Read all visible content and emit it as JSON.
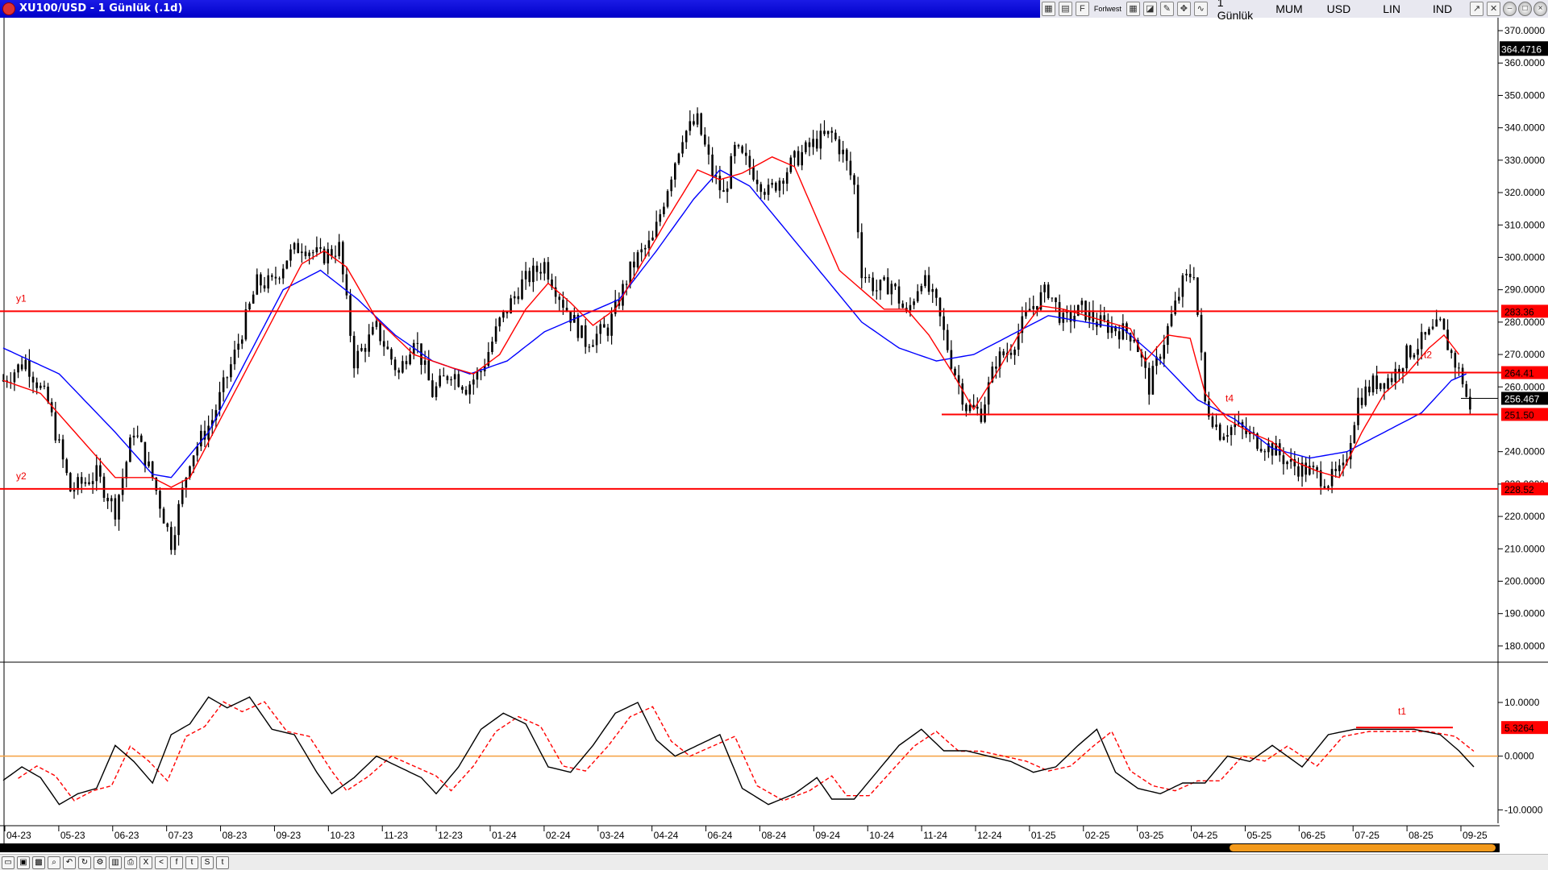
{
  "window": {
    "title": "XU100/USD - 1 Günlük (.1d)"
  },
  "toolbar": {
    "timeframe": "1 Günlük",
    "chart_style": "MUM",
    "currency": "USD",
    "scale": "LIN",
    "indicator": "IND",
    "foreks_label": "Forlwest",
    "icons": [
      "chart-icon",
      "template-icon",
      "foreks-icon",
      "grid-icon",
      "draw-icon",
      "pen-icon",
      "crosshair-icon",
      "wave-icon"
    ]
  },
  "bottom_icons": [
    "folder-icon",
    "save-icon",
    "image-icon",
    "zoom-icon",
    "undo-icon",
    "refresh-icon",
    "settings-icon",
    "db-icon",
    "print-icon",
    "excel-icon",
    "share-icon",
    "facebook-icon",
    "twitter-icon",
    "skype-icon",
    "tumblr-icon"
  ],
  "colors": {
    "ma_fast": "#ff0000",
    "ma_slow": "#0000ff",
    "hline": "#ff0000",
    "zero_line": "#f5a040",
    "osc_main": "#000000",
    "osc_signal": "#ff0000"
  },
  "chart_data": {
    "type": "candlestick",
    "symbol": "XU100/USD",
    "x_labels": [
      "04-23",
      "05-23",
      "06-23",
      "07-23",
      "08-23",
      "09-23",
      "10-23",
      "11-23",
      "12-23",
      "01-24",
      "02-24",
      "03-24",
      "04-24",
      "06-24",
      "08-24",
      "09-24",
      "10-24",
      "11-24",
      "12-24",
      "01-25",
      "02-25",
      "03-25",
      "04-25",
      "05-25",
      "06-25",
      "07-25",
      "08-25",
      "09-25"
    ],
    "price_axis": {
      "ylim": [
        175,
        372
      ],
      "ticks": [
        "370.0000",
        "360.0000",
        "350.0000",
        "340.0000",
        "330.0000",
        "320.0000",
        "310.0000",
        "300.0000",
        "290.0000",
        "280.0000",
        "270.0000",
        "260.0000",
        "240.0000",
        "230.0000",
        "220.0000",
        "210.0000",
        "200.0000",
        "190.0000",
        "180.0000"
      ],
      "tick_values": [
        370,
        360,
        350,
        340,
        330,
        320,
        310,
        300,
        290,
        280,
        270,
        260,
        240,
        230,
        220,
        210,
        200,
        190,
        180
      ]
    },
    "price_path": [
      [
        0,
        262
      ],
      [
        6,
        268
      ],
      [
        12,
        255
      ],
      [
        18,
        228
      ],
      [
        25,
        233
      ],
      [
        30,
        222
      ],
      [
        35,
        247
      ],
      [
        40,
        232
      ],
      [
        45,
        212
      ],
      [
        50,
        238
      ],
      [
        56,
        250
      ],
      [
        62,
        270
      ],
      [
        68,
        292
      ],
      [
        72,
        292
      ],
      [
        76,
        300
      ],
      [
        80,
        304
      ],
      [
        85,
        300
      ],
      [
        90,
        303
      ],
      [
        94,
        268
      ],
      [
        100,
        278
      ],
      [
        106,
        264
      ],
      [
        110,
        276
      ],
      [
        115,
        258
      ],
      [
        120,
        265
      ],
      [
        124,
        260
      ],
      [
        128,
        265
      ],
      [
        133,
        280
      ],
      [
        139,
        292
      ],
      [
        145,
        298
      ],
      [
        150,
        286
      ],
      [
        156,
        274
      ],
      [
        162,
        278
      ],
      [
        168,
        296
      ],
      [
        170,
        300
      ],
      [
        174,
        305
      ],
      [
        178,
        322
      ],
      [
        182,
        338
      ],
      [
        186,
        342
      ],
      [
        190,
        326
      ],
      [
        193,
        319
      ],
      [
        196,
        333
      ],
      [
        200,
        328
      ],
      [
        205,
        320
      ],
      [
        212,
        330
      ],
      [
        218,
        336
      ],
      [
        222,
        338
      ],
      [
        225,
        332
      ],
      [
        228,
        322
      ],
      [
        230,
        296
      ],
      [
        234,
        290
      ],
      [
        238,
        292
      ],
      [
        242,
        282
      ],
      [
        246,
        294
      ],
      [
        250,
        285
      ],
      [
        254,
        268
      ],
      [
        258,
        254
      ],
      [
        262,
        252
      ],
      [
        266,
        268
      ],
      [
        270,
        272
      ],
      [
        275,
        284
      ],
      [
        280,
        290
      ],
      [
        284,
        280
      ],
      [
        289,
        284
      ],
      [
        293,
        280
      ],
      [
        298,
        278
      ],
      [
        303,
        276
      ],
      [
        307,
        260
      ],
      [
        312,
        278
      ],
      [
        316,
        292
      ],
      [
        319,
        296
      ],
      [
        322,
        255
      ],
      [
        326,
        246
      ],
      [
        330,
        248
      ],
      [
        335,
        244
      ],
      [
        340,
        241
      ],
      [
        345,
        236
      ],
      [
        350,
        234
      ],
      [
        355,
        231
      ],
      [
        359,
        234
      ],
      [
        363,
        256
      ],
      [
        367,
        261
      ],
      [
        372,
        263
      ],
      [
        376,
        270
      ],
      [
        381,
        275
      ],
      [
        385,
        279
      ],
      [
        388,
        270
      ],
      [
        391,
        262
      ],
      [
        393,
        252
      ]
    ],
    "ma_fast": [
      [
        0,
        262
      ],
      [
        10,
        258
      ],
      [
        20,
        245
      ],
      [
        30,
        232
      ],
      [
        40,
        232
      ],
      [
        45,
        229
      ],
      [
        50,
        232
      ],
      [
        60,
        254
      ],
      [
        70,
        276
      ],
      [
        80,
        298
      ],
      [
        86,
        302
      ],
      [
        92,
        297
      ],
      [
        100,
        281
      ],
      [
        110,
        270
      ],
      [
        120,
        266
      ],
      [
        126,
        264
      ],
      [
        133,
        270
      ],
      [
        140,
        284
      ],
      [
        146,
        292
      ],
      [
        152,
        286
      ],
      [
        158,
        279
      ],
      [
        164,
        284
      ],
      [
        170,
        296
      ],
      [
        178,
        312
      ],
      [
        186,
        327
      ],
      [
        192,
        324
      ],
      [
        198,
        326
      ],
      [
        206,
        331
      ],
      [
        212,
        328
      ],
      [
        218,
        312
      ],
      [
        224,
        296
      ],
      [
        230,
        290
      ],
      [
        236,
        284
      ],
      [
        242,
        284
      ],
      [
        248,
        276
      ],
      [
        254,
        265
      ],
      [
        260,
        253
      ],
      [
        266,
        264
      ],
      [
        272,
        276
      ],
      [
        278,
        285
      ],
      [
        284,
        284
      ],
      [
        290,
        282
      ],
      [
        296,
        280
      ],
      [
        302,
        278
      ],
      [
        306,
        268
      ],
      [
        312,
        276
      ],
      [
        318,
        275
      ],
      [
        322,
        258
      ],
      [
        328,
        250
      ],
      [
        334,
        246
      ],
      [
        340,
        243
      ],
      [
        346,
        237
      ],
      [
        352,
        234
      ],
      [
        358,
        232
      ],
      [
        364,
        246
      ],
      [
        370,
        258
      ],
      [
        376,
        264
      ],
      [
        382,
        272
      ],
      [
        386,
        276
      ],
      [
        390,
        270
      ]
    ],
    "ma_slow": [
      [
        0,
        272
      ],
      [
        15,
        264
      ],
      [
        30,
        246
      ],
      [
        40,
        233
      ],
      [
        45,
        232
      ],
      [
        55,
        246
      ],
      [
        65,
        268
      ],
      [
        75,
        290
      ],
      [
        85,
        296
      ],
      [
        95,
        287
      ],
      [
        105,
        276
      ],
      [
        115,
        268
      ],
      [
        125,
        264
      ],
      [
        135,
        268
      ],
      [
        145,
        277
      ],
      [
        155,
        282
      ],
      [
        165,
        287
      ],
      [
        175,
        302
      ],
      [
        185,
        318
      ],
      [
        192,
        327
      ],
      [
        200,
        322
      ],
      [
        210,
        308
      ],
      [
        220,
        294
      ],
      [
        230,
        280
      ],
      [
        240,
        272
      ],
      [
        250,
        268
      ],
      [
        260,
        270
      ],
      [
        270,
        276
      ],
      [
        280,
        282
      ],
      [
        290,
        280
      ],
      [
        300,
        278
      ],
      [
        310,
        268
      ],
      [
        320,
        256
      ],
      [
        330,
        250
      ],
      [
        340,
        241
      ],
      [
        350,
        238
      ],
      [
        360,
        240
      ],
      [
        370,
        246
      ],
      [
        380,
        252
      ],
      [
        388,
        262
      ],
      [
        392,
        264
      ]
    ],
    "levels": [
      {
        "label": "y1",
        "value": 283.36,
        "tag": "283.36"
      },
      {
        "label": "y2",
        "value": 228.52,
        "tag": "228.52"
      },
      {
        "label": "t4",
        "value": 251.5,
        "tag": "251.50"
      },
      {
        "label": "t2",
        "value": 264.41,
        "tag": "264.41"
      }
    ],
    "last_price": "256.467",
    "axis_top_tag": "364.4716",
    "oscillator": {
      "ylim": [
        -12.5,
        13
      ],
      "ticks": [
        "10.0000",
        "0.0000",
        "-10.0000"
      ],
      "tick_values": [
        10,
        0,
        -10
      ],
      "zero_line": 0,
      "level": {
        "label": "t1",
        "value": 5.3264,
        "tag": "5.3264"
      },
      "path": [
        [
          0,
          -4.5
        ],
        [
          5,
          -2
        ],
        [
          10,
          -4
        ],
        [
          15,
          -9
        ],
        [
          20,
          -7
        ],
        [
          25,
          -6
        ],
        [
          30,
          2
        ],
        [
          35,
          -1
        ],
        [
          40,
          -5
        ],
        [
          45,
          4
        ],
        [
          50,
          6
        ],
        [
          55,
          11
        ],
        [
          60,
          9
        ],
        [
          66,
          11
        ],
        [
          72,
          5
        ],
        [
          78,
          4
        ],
        [
          84,
          -3
        ],
        [
          88,
          -7
        ],
        [
          94,
          -4
        ],
        [
          100,
          0
        ],
        [
          106,
          -2
        ],
        [
          112,
          -4
        ],
        [
          116,
          -7
        ],
        [
          122,
          -2
        ],
        [
          128,
          5
        ],
        [
          134,
          8
        ],
        [
          140,
          6
        ],
        [
          146,
          -2
        ],
        [
          152,
          -3
        ],
        [
          158,
          2
        ],
        [
          164,
          8
        ],
        [
          170,
          10
        ],
        [
          175,
          3
        ],
        [
          180,
          0
        ],
        [
          186,
          2
        ],
        [
          192,
          4
        ],
        [
          198,
          -6
        ],
        [
          205,
          -9
        ],
        [
          212,
          -7
        ],
        [
          218,
          -4
        ],
        [
          222,
          -8
        ],
        [
          228,
          -8
        ],
        [
          234,
          -3
        ],
        [
          240,
          2
        ],
        [
          246,
          5
        ],
        [
          252,
          1
        ],
        [
          258,
          1
        ],
        [
          264,
          0
        ],
        [
          270,
          -1
        ],
        [
          276,
          -3
        ],
        [
          282,
          -2
        ],
        [
          288,
          2
        ],
        [
          293,
          5
        ],
        [
          298,
          -3
        ],
        [
          304,
          -6
        ],
        [
          310,
          -7
        ],
        [
          316,
          -5
        ],
        [
          322,
          -5
        ],
        [
          328,
          0
        ],
        [
          334,
          -1
        ],
        [
          340,
          2
        ],
        [
          348,
          -2
        ],
        [
          355,
          4
        ],
        [
          362,
          5
        ],
        [
          370,
          5
        ],
        [
          378,
          5
        ],
        [
          385,
          4
        ],
        [
          390,
          1
        ],
        [
          394,
          -2
        ]
      ]
    }
  }
}
